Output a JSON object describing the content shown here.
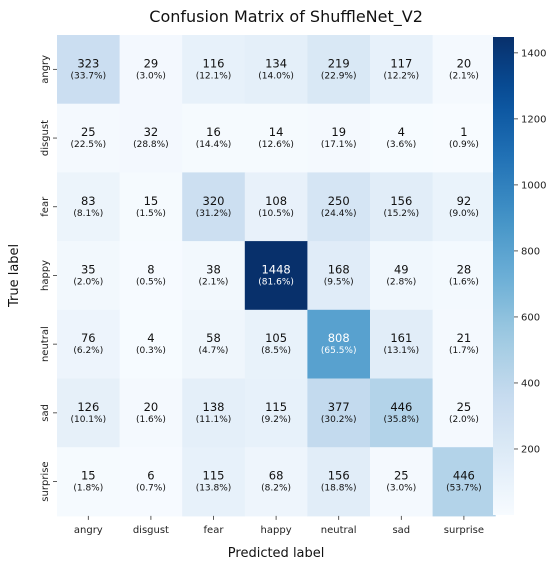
{
  "chart_data": {
    "type": "heatmap",
    "title": "Confusion Matrix of ShuffleNet_V2",
    "xlabel": "Predicted label",
    "ylabel": "True label",
    "x_categories": [
      "angry",
      "disgust",
      "fear",
      "happy",
      "neutral",
      "sad",
      "surprise"
    ],
    "y_categories": [
      "angry",
      "disgust",
      "fear",
      "happy",
      "neutral",
      "sad",
      "surprise"
    ],
    "values": [
      [
        323,
        29,
        116,
        134,
        219,
        117,
        20
      ],
      [
        25,
        32,
        16,
        14,
        19,
        4,
        1
      ],
      [
        83,
        15,
        320,
        108,
        250,
        156,
        92
      ],
      [
        35,
        8,
        38,
        1448,
        168,
        49,
        28
      ],
      [
        76,
        4,
        58,
        105,
        808,
        161,
        21
      ],
      [
        126,
        20,
        138,
        115,
        377,
        446,
        25
      ],
      [
        15,
        6,
        115,
        68,
        156,
        25,
        446
      ]
    ],
    "percents": [
      [
        "(33.7%)",
        "(3.0%)",
        "(12.1%)",
        "(14.0%)",
        "(22.9%)",
        "(12.2%)",
        "(2.1%)"
      ],
      [
        "(22.5%)",
        "(28.8%)",
        "(14.4%)",
        "(12.6%)",
        "(17.1%)",
        "(3.6%)",
        "(0.9%)"
      ],
      [
        "(8.1%)",
        "(1.5%)",
        "(31.2%)",
        "(10.5%)",
        "(24.4%)",
        "(15.2%)",
        "(9.0%)"
      ],
      [
        "(2.0%)",
        "(0.5%)",
        "(2.1%)",
        "(81.6%)",
        "(9.5%)",
        "(2.8%)",
        "(1.6%)"
      ],
      [
        "(6.2%)",
        "(0.3%)",
        "(4.7%)",
        "(8.5%)",
        "(65.5%)",
        "(13.1%)",
        "(1.7%)"
      ],
      [
        "(10.1%)",
        "(1.6%)",
        "(11.1%)",
        "(9.2%)",
        "(30.2%)",
        "(35.8%)",
        "(2.0%)"
      ],
      [
        "(1.8%)",
        "(0.7%)",
        "(13.8%)",
        "(8.2%)",
        "(18.8%)",
        "(3.0%)",
        "(53.7%)"
      ]
    ],
    "colorbar": {
      "ticks": [
        200,
        400,
        600,
        800,
        1000,
        1200,
        1400
      ],
      "tick_labels": [
        "200",
        "400",
        "600",
        "800",
        "1000",
        "1200",
        "1400"
      ],
      "range": [
        0,
        1448
      ],
      "colormap": "Blues"
    },
    "grid": false
  }
}
